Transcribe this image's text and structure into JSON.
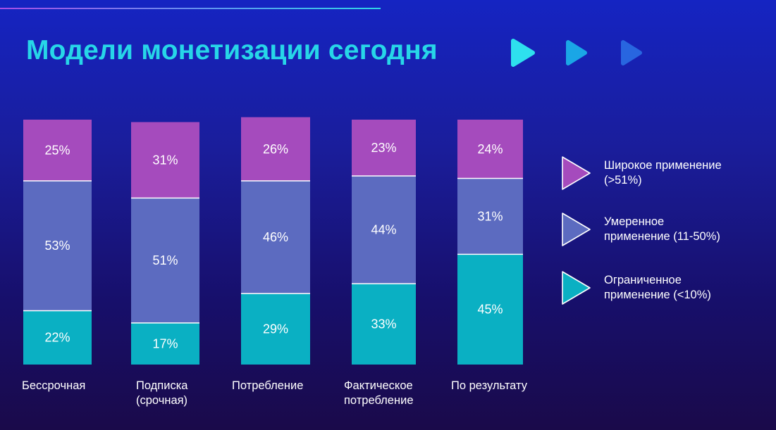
{
  "title": "Модели монетизации сегодня",
  "colors": {
    "wide": "#a54bbd",
    "moderate": "#5c6bc0",
    "limited": "#0ab0c3",
    "title": "#27d6e8",
    "deco_arrows": [
      "#2ee0ee",
      "#1aa6e6",
      "#2866e0"
    ]
  },
  "legend": [
    {
      "series": "wide",
      "lines": [
        "Широкое применение",
        "(>51%)"
      ],
      "icon": "purple-triangle-icon"
    },
    {
      "series": "moderate",
      "lines": [
        "Умеренное",
        "применение (11-50%)"
      ],
      "icon": "blue-triangle-icon"
    },
    {
      "series": "limited",
      "lines": [
        "Ограниченное",
        "применение (<10%)"
      ],
      "icon": "teal-triangle-icon"
    }
  ],
  "chart_data": {
    "type": "bar",
    "stacked": true,
    "categories": [
      [
        "Бессрочная"
      ],
      [
        "Подписка",
        "(срочная)"
      ],
      [
        "Потребление"
      ],
      [
        "Фактическое",
        "потребление"
      ],
      [
        "По результату"
      ]
    ],
    "series": [
      {
        "key": "limited",
        "name": "Ограниченное применение (<10%)",
        "values": [
          22,
          17,
          29,
          33,
          45
        ],
        "labels": [
          "22%",
          "17%",
          "29%",
          "33%",
          "45%"
        ]
      },
      {
        "key": "moderate",
        "name": "Умеренное применение (11-50%)",
        "values": [
          53,
          51,
          46,
          44,
          31
        ],
        "labels": [
          "53%",
          "51%",
          "46%",
          "44%",
          "31%"
        ]
      },
      {
        "key": "wide",
        "name": "Широкое применение (>51%)",
        "values": [
          25,
          31,
          26,
          23,
          24
        ],
        "labels": [
          "25%",
          "31%",
          "26%",
          "23%",
          "24%"
        ]
      }
    ],
    "ylim": [
      0,
      100
    ],
    "xlabel": "",
    "ylabel": "",
    "grid": false,
    "legend_position": "right"
  }
}
